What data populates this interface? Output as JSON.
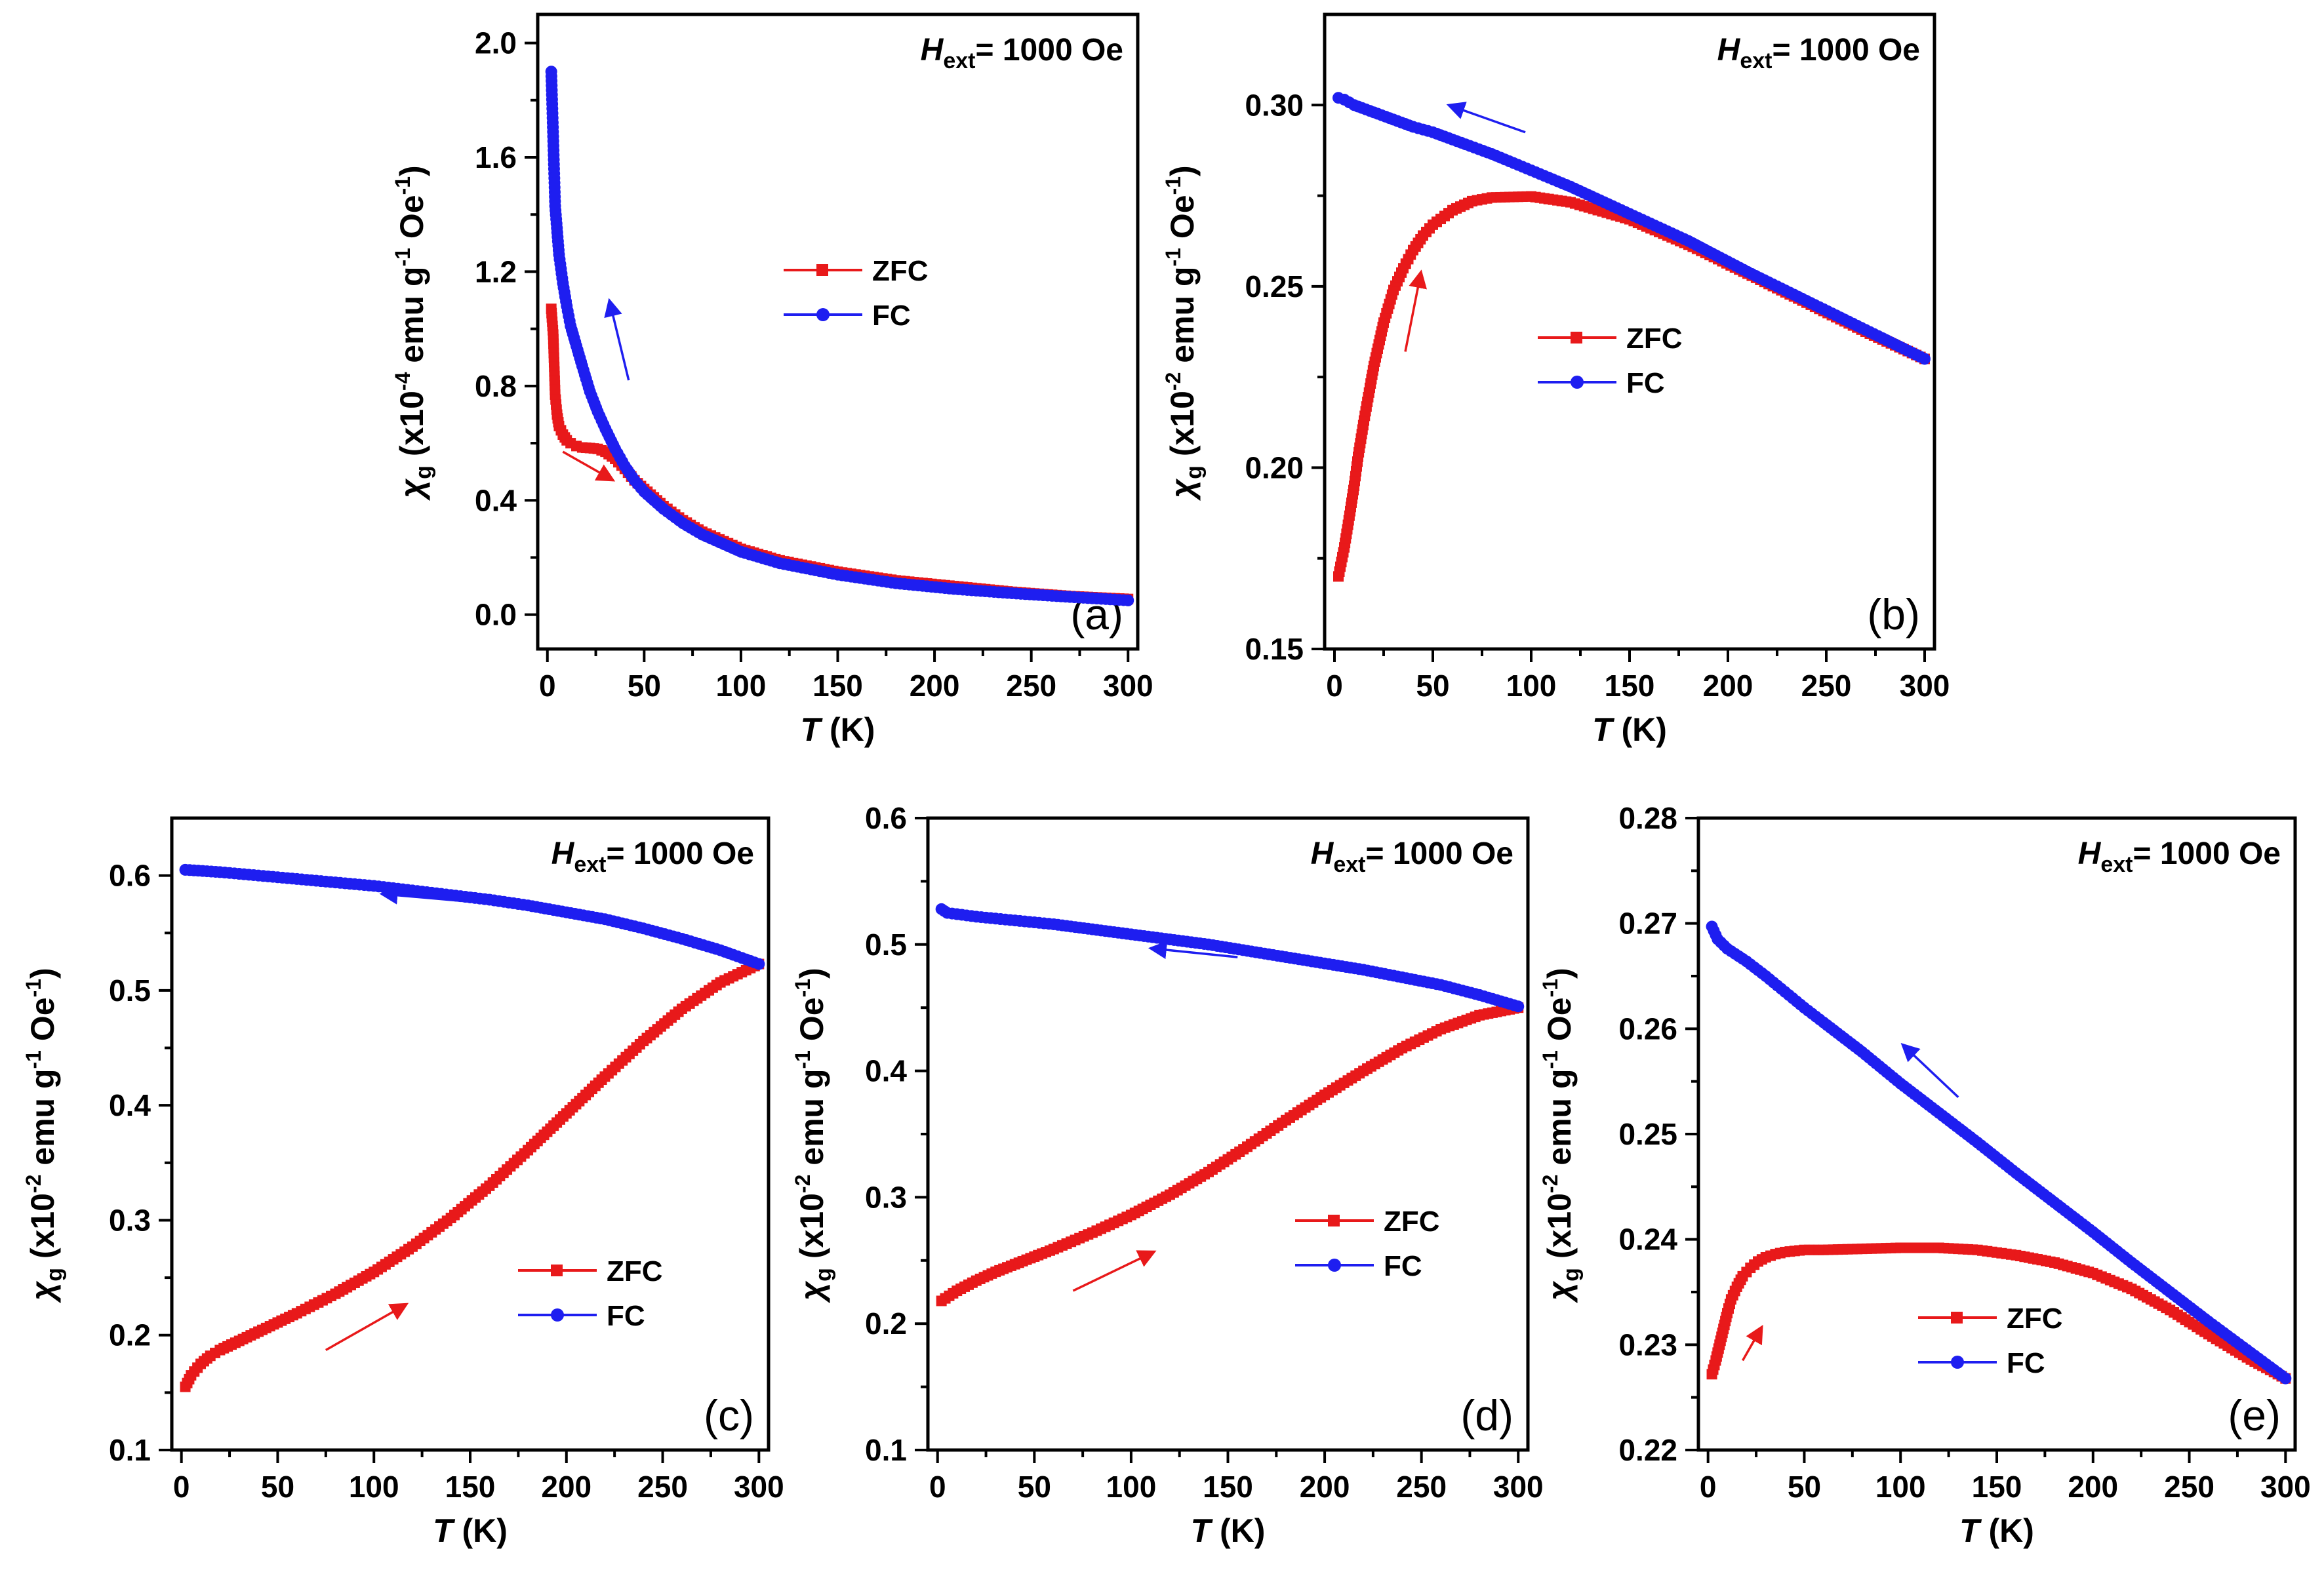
{
  "figure": {
    "description_type": "multi-panel magnetic susceptibility plots",
    "colors": {
      "zfc": "#e8191a",
      "fc": "#1e1ef0"
    }
  },
  "chart_data": [
    {
      "type": "line",
      "panel_label": "(a)",
      "field_label": {
        "main": "H",
        "sub": "ext",
        "rest": "= 1000 Oe"
      },
      "xlabel": {
        "var": "T",
        "unit": " (K)"
      },
      "ylabel": {
        "var": "χ",
        "sub": "g",
        "pre": " (x10",
        "exp": "-4",
        "mid": " emu g",
        "exp2": "-1",
        "post": " Oe",
        "exp3": "-1",
        "end": ")"
      },
      "xlim": [
        -5,
        305
      ],
      "ylim": [
        -0.12,
        2.1
      ],
      "xticks": [
        0,
        50,
        100,
        150,
        200,
        250,
        300
      ],
      "yticks": [
        0.0,
        0.4,
        0.8,
        1.2,
        1.6,
        2.0
      ],
      "ytick_labels": [
        "0.0",
        "0.4",
        "0.8",
        "1.2",
        "1.6",
        "2.0"
      ],
      "legend": {
        "position": "center-right",
        "entries": [
          "ZFC",
          "FC"
        ]
      },
      "series": [
        {
          "name": "ZFC",
          "color": "#e8191a",
          "x": [
            2,
            3,
            4,
            5,
            6,
            8,
            10,
            12,
            15,
            18,
            22,
            26,
            30,
            35,
            40,
            45,
            50,
            60,
            70,
            80,
            100,
            120,
            150,
            180,
            210,
            240,
            270,
            300
          ],
          "y": [
            1.07,
            0.98,
            0.77,
            0.7,
            0.66,
            0.63,
            0.61,
            0.6,
            0.59,
            0.585,
            0.583,
            0.58,
            0.57,
            0.545,
            0.51,
            0.47,
            0.44,
            0.38,
            0.33,
            0.29,
            0.23,
            0.19,
            0.15,
            0.12,
            0.1,
            0.08,
            0.065,
            0.055
          ]
        },
        {
          "name": "FC",
          "color": "#1e1ef0",
          "x": [
            2,
            4,
            6,
            8,
            10,
            12,
            15,
            18,
            22,
            26,
            30,
            35,
            40,
            45,
            50,
            60,
            70,
            80,
            100,
            120,
            150,
            180,
            210,
            240,
            270,
            300
          ],
          "y": [
            1.9,
            1.43,
            1.26,
            1.16,
            1.08,
            1.01,
            0.94,
            0.87,
            0.78,
            0.71,
            0.65,
            0.58,
            0.52,
            0.47,
            0.43,
            0.37,
            0.32,
            0.28,
            0.22,
            0.18,
            0.14,
            0.11,
            0.09,
            0.075,
            0.062,
            0.05
          ]
        }
      ],
      "arrows": [
        {
          "color": "#1e1ef0",
          "from": [
            42,
            0.82
          ],
          "to": [
            32,
            1.1
          ]
        },
        {
          "color": "#e8191a",
          "from": [
            8,
            0.57
          ],
          "to": [
            34,
            0.47
          ]
        }
      ]
    },
    {
      "type": "line",
      "panel_label": "(b)",
      "field_label": {
        "main": "H",
        "sub": "ext",
        "rest": "= 1000 Oe"
      },
      "xlabel": {
        "var": "T",
        "unit": " (K)"
      },
      "ylabel": {
        "var": "χ",
        "sub": "g",
        "pre": " (x10",
        "exp": "-2",
        "mid": " emu g",
        "exp2": "-1",
        "post": " Oe",
        "exp3": "-1",
        "end": ")"
      },
      "xlim": [
        -5,
        305
      ],
      "ylim": [
        0.15,
        0.325
      ],
      "xticks": [
        0,
        50,
        100,
        150,
        200,
        250,
        300
      ],
      "yticks": [
        0.15,
        0.2,
        0.25,
        0.3
      ],
      "ytick_labels": [
        "0.15",
        "0.20",
        "0.25",
        "0.30"
      ],
      "legend": {
        "position": "center-right",
        "entries": [
          "ZFC",
          "FC"
        ]
      },
      "series": [
        {
          "name": "ZFC",
          "color": "#e8191a",
          "x": [
            2,
            5,
            8,
            10,
            12,
            15,
            18,
            20,
            25,
            30,
            35,
            40,
            45,
            50,
            60,
            70,
            80,
            100,
            120,
            150,
            180,
            210,
            240,
            270,
            300
          ],
          "y": [
            0.17,
            0.178,
            0.188,
            0.195,
            0.203,
            0.213,
            0.222,
            0.228,
            0.24,
            0.249,
            0.255,
            0.26,
            0.264,
            0.267,
            0.271,
            0.2735,
            0.2745,
            0.2748,
            0.2732,
            0.2685,
            0.2615,
            0.2535,
            0.2455,
            0.2375,
            0.23
          ]
        },
        {
          "name": "FC",
          "color": "#1e1ef0",
          "x": [
            2,
            5,
            10,
            20,
            30,
            40,
            50,
            60,
            80,
            100,
            120,
            150,
            180,
            210,
            240,
            270,
            300
          ],
          "y": [
            0.302,
            0.3015,
            0.3,
            0.298,
            0.296,
            0.294,
            0.2925,
            0.2905,
            0.2865,
            0.282,
            0.2775,
            0.27,
            0.2625,
            0.254,
            0.246,
            0.238,
            0.23
          ]
        }
      ],
      "arrows": [
        {
          "color": "#1e1ef0",
          "from": [
            97,
            0.2925
          ],
          "to": [
            58,
            0.3
          ]
        },
        {
          "color": "#e8191a",
          "from": [
            36,
            0.232
          ],
          "to": [
            44,
            0.254
          ]
        }
      ]
    },
    {
      "type": "line",
      "panel_label": "(c)",
      "field_label": {
        "main": "H",
        "sub": "ext",
        "rest": "= 1000 Oe"
      },
      "xlabel": {
        "var": "T",
        "unit": " (K)"
      },
      "ylabel": {
        "var": "χ",
        "sub": "g",
        "pre": " (x10",
        "exp": "-2",
        "mid": " emu g",
        "exp2": "-1",
        "post": " Oe",
        "exp3": "-1",
        "end": ")"
      },
      "xlim": [
        -5,
        305
      ],
      "ylim": [
        0.1,
        0.65
      ],
      "xticks": [
        0,
        50,
        100,
        150,
        200,
        250,
        300
      ],
      "yticks": [
        0.1,
        0.2,
        0.3,
        0.4,
        0.5,
        0.6
      ],
      "ytick_labels": [
        "0.1",
        "0.2",
        "0.3",
        "0.4",
        "0.5",
        "0.6"
      ],
      "legend": {
        "position": "bottom-right",
        "entries": [
          "ZFC",
          "FC"
        ]
      },
      "series": [
        {
          "name": "ZFC",
          "color": "#e8191a",
          "x": [
            2,
            5,
            10,
            15,
            20,
            30,
            40,
            50,
            60,
            80,
            100,
            120,
            140,
            160,
            180,
            200,
            220,
            240,
            260,
            280,
            300
          ],
          "y": [
            0.155,
            0.165,
            0.175,
            0.182,
            0.187,
            0.195,
            0.203,
            0.211,
            0.219,
            0.236,
            0.255,
            0.277,
            0.302,
            0.33,
            0.361,
            0.393,
            0.425,
            0.456,
            0.484,
            0.507,
            0.523
          ]
        },
        {
          "name": "FC",
          "color": "#1e1ef0",
          "x": [
            2,
            20,
            40,
            60,
            80,
            100,
            120,
            140,
            160,
            180,
            200,
            220,
            240,
            260,
            280,
            300
          ],
          "y": [
            0.605,
            0.603,
            0.6,
            0.597,
            0.594,
            0.591,
            0.587,
            0.583,
            0.579,
            0.574,
            0.568,
            0.562,
            0.554,
            0.545,
            0.535,
            0.523
          ]
        }
      ],
      "arrows": [
        {
          "color": "#1e1ef0",
          "from": [
            152,
            0.577
          ],
          "to": [
            104,
            0.584
          ]
        },
        {
          "color": "#e8191a",
          "from": [
            75,
            0.187
          ],
          "to": [
            117,
            0.227
          ]
        }
      ]
    },
    {
      "type": "line",
      "panel_label": "(d)",
      "field_label": {
        "main": "H",
        "sub": "ext",
        "rest": "= 1000 Oe"
      },
      "xlabel": {
        "var": "T",
        "unit": " (K)"
      },
      "ylabel": {
        "var": "χ",
        "sub": "g",
        "pre": " (x10",
        "exp": "-2",
        "mid": " emu g",
        "exp2": "-1",
        "post": " Oe",
        "exp3": "-1",
        "end": ")"
      },
      "xlim": [
        -5,
        305
      ],
      "ylim": [
        0.1,
        0.6
      ],
      "xticks": [
        0,
        50,
        100,
        150,
        200,
        250,
        300
      ],
      "yticks": [
        0.1,
        0.2,
        0.3,
        0.4,
        0.5,
        0.6
      ],
      "ytick_labels": [
        "0.1",
        "0.2",
        "0.3",
        "0.4",
        "0.5",
        "0.6"
      ],
      "legend": {
        "position": "bottom-right",
        "entries": [
          "ZFC",
          "FC"
        ]
      },
      "series": [
        {
          "name": "ZFC",
          "color": "#e8191a",
          "x": [
            2,
            10,
            20,
            30,
            40,
            50,
            60,
            80,
            100,
            120,
            140,
            160,
            180,
            200,
            220,
            240,
            260,
            280,
            300
          ],
          "y": [
            0.218,
            0.226,
            0.234,
            0.241,
            0.247,
            0.253,
            0.259,
            0.272,
            0.286,
            0.302,
            0.32,
            0.34,
            0.361,
            0.381,
            0.4,
            0.418,
            0.433,
            0.444,
            0.45
          ]
        },
        {
          "name": "FC",
          "color": "#1e1ef0",
          "x": [
            2,
            5,
            20,
            40,
            60,
            80,
            100,
            120,
            140,
            160,
            180,
            200,
            220,
            240,
            260,
            280,
            300
          ],
          "y": [
            0.528,
            0.525,
            0.522,
            0.519,
            0.516,
            0.512,
            0.508,
            0.504,
            0.5,
            0.495,
            0.49,
            0.485,
            0.48,
            0.474,
            0.468,
            0.46,
            0.451
          ]
        }
      ],
      "arrows": [
        {
          "color": "#1e1ef0",
          "from": [
            155,
            0.49
          ],
          "to": [
            110,
            0.497
          ]
        },
        {
          "color": "#e8191a",
          "from": [
            70,
            0.226
          ],
          "to": [
            112,
            0.257
          ]
        }
      ]
    },
    {
      "type": "line",
      "panel_label": "(e)",
      "field_label": {
        "main": "H",
        "sub": "ext",
        "rest": "= 1000 Oe"
      },
      "xlabel": {
        "var": "T",
        "unit": " (K)"
      },
      "ylabel": {
        "var": "χ",
        "sub": "g",
        "pre": " (x10",
        "exp": "-2",
        "mid": " emu g",
        "exp2": "-1",
        "post": " Oe",
        "exp3": "-1",
        "end": ")"
      },
      "xlim": [
        -5,
        305
      ],
      "ylim": [
        0.22,
        0.28
      ],
      "xticks": [
        0,
        50,
        100,
        150,
        200,
        250,
        300
      ],
      "yticks": [
        0.22,
        0.23,
        0.24,
        0.25,
        0.26,
        0.27,
        0.28
      ],
      "ytick_labels": [
        "0.22",
        "0.23",
        "0.24",
        "0.25",
        "0.26",
        "0.27",
        "0.28"
      ],
      "legend": {
        "position": "bottom-center",
        "entries": [
          "ZFC",
          "FC"
        ]
      },
      "series": [
        {
          "name": "ZFC",
          "color": "#e8191a",
          "x": [
            2,
            4,
            6,
            8,
            10,
            12,
            15,
            18,
            22,
            26,
            30,
            35,
            40,
            50,
            60,
            80,
            100,
            120,
            140,
            160,
            180,
            200,
            220,
            240,
            260,
            280,
            300
          ],
          "y": [
            0.2272,
            0.2285,
            0.23,
            0.2315,
            0.233,
            0.2343,
            0.2355,
            0.2365,
            0.2373,
            0.2379,
            0.2383,
            0.2386,
            0.2388,
            0.239,
            0.239,
            0.2391,
            0.2392,
            0.2392,
            0.239,
            0.2385,
            0.2378,
            0.2368,
            0.2353,
            0.2333,
            0.231,
            0.2288,
            0.2268
          ]
        },
        {
          "name": "FC",
          "color": "#1e1ef0",
          "x": [
            2,
            5,
            10,
            20,
            30,
            40,
            50,
            60,
            80,
            100,
            120,
            140,
            160,
            180,
            200,
            220,
            240,
            260,
            280,
            300
          ],
          "y": [
            0.2697,
            0.2685,
            0.2676,
            0.2664,
            0.265,
            0.2635,
            0.262,
            0.2606,
            0.2578,
            0.2548,
            0.252,
            0.2492,
            0.2463,
            0.2435,
            0.2407,
            0.2378,
            0.235,
            0.2322,
            0.2295,
            0.2268
          ]
        }
      ],
      "arrows": [
        {
          "color": "#1e1ef0",
          "from": [
            130,
            0.2535
          ],
          "to": [
            101,
            0.2585
          ]
        },
        {
          "color": "#e8191a",
          "from": [
            18,
            0.2285
          ],
          "to": [
            28,
            0.2317
          ]
        }
      ]
    }
  ]
}
